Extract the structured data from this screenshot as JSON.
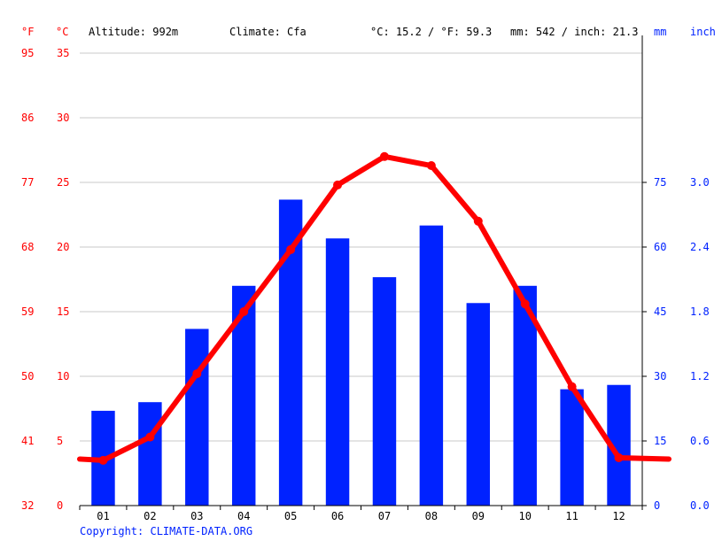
{
  "header": {
    "altitude": "Altitude: 992m",
    "climate": "Climate: Cfa",
    "temp_avg": "°C: 15.2 / °F: 59.3",
    "precip_total": "mm: 542 / inch: 21.3"
  },
  "axis_units": {
    "fahrenheit": "°F",
    "celsius": "°C",
    "mm": "mm",
    "inch": "inch"
  },
  "footer": {
    "copyright": "Copyright: CLIMATE-DATA.ORG"
  },
  "colors": {
    "temperature": "#ff0000",
    "precipitation": "#0022ff",
    "grid": "#c8c8c8",
    "axis": "#000000",
    "label_temp": "#ff0000",
    "label_precip": "#0022ff",
    "copyright": "#0022ff"
  },
  "chart_data": {
    "type": "bar",
    "categories": [
      "01",
      "02",
      "03",
      "04",
      "05",
      "06",
      "07",
      "08",
      "09",
      "10",
      "11",
      "12"
    ],
    "series": [
      {
        "type": "bar",
        "axis": "right",
        "values": [
          22,
          24,
          41,
          51,
          71,
          62,
          53,
          65,
          47,
          51,
          27,
          28
        ]
      },
      {
        "type": "line",
        "axis": "left",
        "values": [
          3.5,
          5.3,
          10.2,
          15.0,
          19.8,
          24.8,
          27.0,
          26.3,
          22.0,
          15.6,
          9.2,
          3.7
        ],
        "edge_left": 3.6,
        "edge_right": 3.6
      }
    ],
    "y_left": {
      "ylim": [
        0,
        35
      ],
      "ticks": [
        0,
        5,
        10,
        15,
        20,
        25,
        30,
        35
      ]
    },
    "y_left_f": {
      "ticks": [
        "32",
        "41",
        "50",
        "59",
        "68",
        "77",
        "86",
        "95"
      ]
    },
    "y_right": {
      "ylim": [
        0,
        105
      ],
      "ticks": [
        0,
        15,
        30,
        45,
        60,
        75
      ],
      "tick_labels": [
        "0",
        "15",
        "30",
        "45",
        "60",
        "75"
      ]
    },
    "y_right_inch": {
      "tick_labels": [
        "0.0",
        "0.6",
        "1.2",
        "1.8",
        "2.4",
        "3.0"
      ]
    },
    "grid": true
  }
}
